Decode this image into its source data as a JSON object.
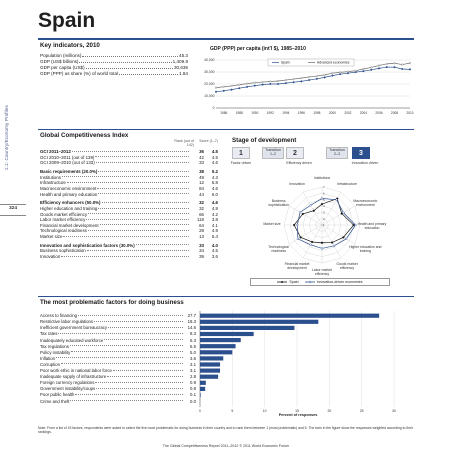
{
  "side_label": "2.1: Country/Economy Profiles",
  "page_number": "324",
  "country": "Spain",
  "key_indicators": {
    "title": "Key indicators, 2010",
    "rows": [
      {
        "label": "Population (millions)",
        "value": "45.3"
      },
      {
        "label": "GDP (US$ billions)",
        "value": "1,409.9"
      },
      {
        "label": "GDP per capita (US$)",
        "value": "30,639"
      },
      {
        "label": "GDP (PPP) as share (%) of world total",
        "value": "1.84"
      }
    ]
  },
  "gdp_chart_title": "GDP (PPP) per capita (int'l $), 1985–2010",
  "gci": {
    "title": "Global Competitiveness Index",
    "rank_header": "Rank (out of 142)",
    "score_header": "Score (1–7)",
    "rows": [
      {
        "label": "GCI 2011–2012",
        "rank": "36",
        "score": "4.5",
        "bold": true
      },
      {
        "label": "GCI 2010–2011 (out of 139)",
        "rank": "42",
        "score": "4.5"
      },
      {
        "label": "GCI 2009–2010 (out of 133)",
        "rank": "33",
        "score": "4.6"
      },
      {
        "label": "Basic requirements (20.0%)",
        "rank": "38",
        "score": "5.2",
        "bold": true,
        "gap": true
      },
      {
        "label": "Institutions",
        "rank": "49",
        "score": "4.3"
      },
      {
        "label": "Infrastructure",
        "rank": "12",
        "score": "5.8"
      },
      {
        "label": "Macroeconomic environment",
        "rank": "84",
        "score": "4.6"
      },
      {
        "label": "Health and primary education",
        "rank": "44",
        "score": "6.0"
      },
      {
        "label": "Efficiency enhancers (50.0%)",
        "rank": "32",
        "score": "4.6",
        "bold": true,
        "gap": true
      },
      {
        "label": "Higher education and training",
        "rank": "32",
        "score": "4.9"
      },
      {
        "label": "Goods market efficiency",
        "rank": "66",
        "score": "4.2"
      },
      {
        "label": "Labor market efficiency",
        "rank": "119",
        "score": "3.8"
      },
      {
        "label": "Financial market development",
        "rank": "64",
        "score": "4.1"
      },
      {
        "label": "Technological readiness",
        "rank": "28",
        "score": "4.9"
      },
      {
        "label": "Market size",
        "rank": "13",
        "score": "5.4"
      },
      {
        "label": "Innovation and sophistication factors (30.0%)",
        "rank": "33",
        "score": "4.0",
        "bold": true,
        "gap": true
      },
      {
        "label": "Business sophistication",
        "rank": "34",
        "score": "4.5"
      },
      {
        "label": "Innovation",
        "rank": "39",
        "score": "3.6"
      }
    ]
  },
  "stage": {
    "title": "Stage of development",
    "boxes": [
      {
        "label": "1",
        "active": false
      },
      {
        "label": "2",
        "active": false
      },
      {
        "label": "3",
        "active": true
      }
    ],
    "transitions": [
      "Transition 1–2",
      "Transition 2–3"
    ],
    "box_labels": [
      "Factor driven",
      "Efficiency driven",
      "Innovation driven"
    ]
  },
  "radar": {
    "pillars": [
      "Institutions",
      "Infrastructure",
      "Macroeconomic environment",
      "Health and primary education",
      "Higher education and training",
      "Goods market efficiency",
      "Labor market efficiency",
      "Financial market development",
      "Technological readiness",
      "Market size",
      "Business sophistication",
      "Innovation"
    ],
    "ticks": [
      "1",
      "2",
      "3",
      "4",
      "5",
      "6",
      "7"
    ],
    "legend": [
      "Spain",
      "Innovation-driven economies"
    ]
  },
  "problematic": {
    "title": "The most problematic factors for doing business",
    "xlabel": "Percent of responses",
    "note": "Note: From a list of 15 factors, respondents were asked to select the five most problematic for doing business in their country and to rank them between 1 (most problematic) and 5. The bars in the figure show the responses weighted according to their rankings."
  },
  "chart_data": [
    {
      "type": "line",
      "title": "GDP (PPP) per capita (int'l $), 1985–2010",
      "x": [
        1985,
        1986,
        1987,
        1988,
        1989,
        1990,
        1991,
        1992,
        1993,
        1994,
        1995,
        1996,
        1997,
        1998,
        1999,
        2000,
        2001,
        2002,
        2003,
        2004,
        2005,
        2006,
        2007,
        2008,
        2009,
        2010
      ],
      "xticks": [
        "1986",
        "1988",
        "1990",
        "1992",
        "1994",
        "1996",
        "1998",
        "2000",
        "2002",
        "2004",
        "2006",
        "2008",
        "2010"
      ],
      "yticks": [
        "0",
        "10,000",
        "20,000",
        "30,000",
        "40,000"
      ],
      "ylim": [
        0,
        40000
      ],
      "series": [
        {
          "name": "Spain",
          "color": "#2c4f8e",
          "values": [
            13500,
            14300,
            15300,
            16500,
            17600,
            18600,
            19500,
            20000,
            20000,
            20700,
            21500,
            22200,
            23300,
            24300,
            25500,
            27000,
            28200,
            29000,
            29900,
            30700,
            31800,
            33000,
            34100,
            34000,
            32500,
            32200
          ]
        },
        {
          "name": "Advanced economies",
          "color": "#6a6a6a",
          "values": [
            17000,
            17700,
            18400,
            19400,
            20300,
            21100,
            21600,
            22100,
            22500,
            23300,
            24100,
            24900,
            25900,
            26600,
            27600,
            29000,
            29700,
            30300,
            31100,
            32500,
            33800,
            35400,
            36800,
            37300,
            36200,
            37400
          ]
        }
      ]
    },
    {
      "type": "radar",
      "categories": [
        "Institutions",
        "Infrastructure",
        "Macroeconomic environment",
        "Health and primary education",
        "Higher education and training",
        "Goods market efficiency",
        "Labor market efficiency",
        "Financial market development",
        "Technological readiness",
        "Market size",
        "Business sophistication",
        "Innovation"
      ],
      "ylim": [
        1,
        7
      ],
      "series": [
        {
          "name": "Spain",
          "color": "#1a1a1a",
          "values": [
            4.3,
            5.8,
            4.6,
            6.0,
            4.9,
            4.2,
            3.8,
            4.1,
            4.9,
            5.4,
            4.5,
            3.6
          ]
        },
        {
          "name": "Innovation-driven economies",
          "color": "#2c4f8e",
          "values": [
            5.2,
            5.6,
            4.9,
            6.3,
            5.4,
            4.8,
            4.7,
            4.6,
            5.4,
            4.9,
            5.0,
            4.6
          ]
        }
      ]
    },
    {
      "type": "bar",
      "orientation": "horizontal",
      "categories": [
        "Access to financing",
        "Restrictive labor regulations",
        "Inefficient government bureaucracy",
        "Tax rates",
        "Inadequately educated workforce",
        "Tax regulations",
        "Policy instability",
        "Inflation",
        "Corruption",
        "Poor work ethic in national labor force",
        "Inadequate supply of infrastructure",
        "Foreign currency regulations",
        "Government instability/coups",
        "Poor public health",
        "Crime and theft"
      ],
      "values": [
        27.7,
        18.3,
        14.6,
        8.3,
        6.3,
        5.5,
        5.0,
        3.6,
        3.1,
        3.1,
        2.8,
        0.9,
        0.8,
        0.1,
        0.0
      ],
      "value_labels": [
        "27.7",
        "18.3",
        "14.6",
        "8.3",
        "6.3",
        "5.5",
        "5.0",
        "3.6",
        "3.1",
        "3.1",
        "2.8",
        "0.9",
        "0.8",
        "0.1",
        "0.0"
      ],
      "xticks": [
        "0",
        "5",
        "10",
        "15",
        "20",
        "25",
        "30"
      ],
      "xlim": [
        0,
        30
      ],
      "xlabel": "Percent of responses",
      "color": "#2c4f8e"
    }
  ],
  "footer": "The Global Competitiveness Report 2011–2012 © 2011 World Economic Forum"
}
